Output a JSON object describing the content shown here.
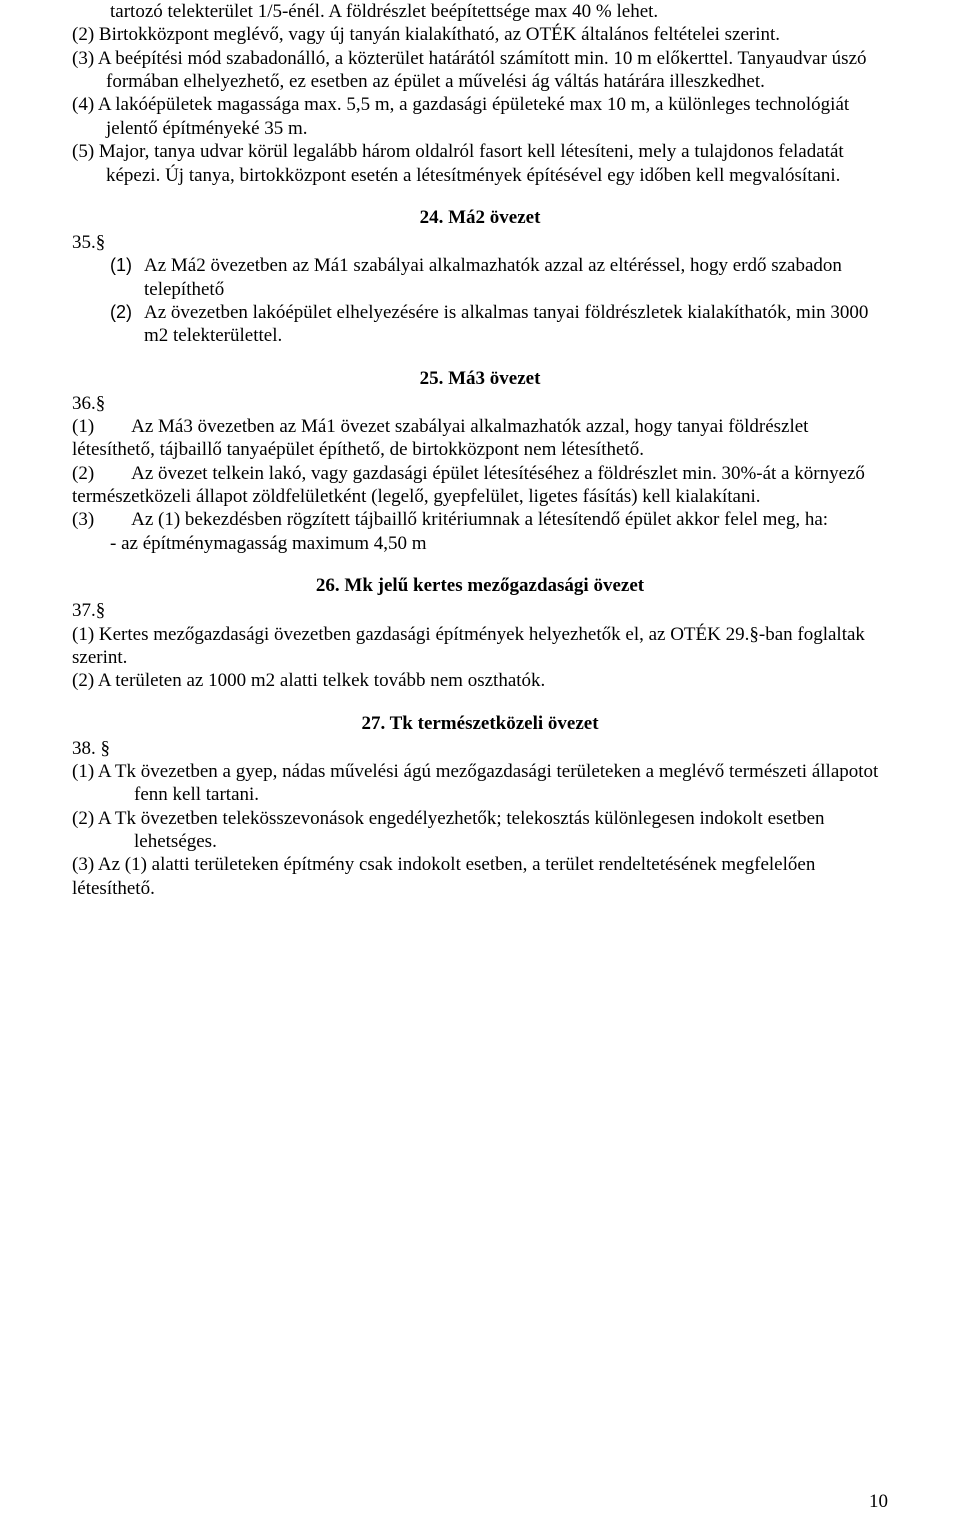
{
  "top": {
    "p1_cont": "tartozó telekterület 1/5-énél. A földrészlet beépítettsége max 40 % lehet.",
    "p2": "(2) Birtokközpont meglévő, vagy új tanyán kialakítható, az OTÉK általános feltételei szerint.",
    "p3": "(3) A beépítési mód szabadonálló, a közterület határától számított min. 10 m előkerttel. Tanyaudvar úszó formában elhelyezhető, ez esetben az épület a művelési ág váltás határára illeszkedhet.",
    "p4": "(4) A lakóépületek magassága max. 5,5 m, a gazdasági épületeké max 10 m, a különleges technológiát jelentő építményeké 35 m.",
    "p5": "(5) Major, tanya udvar körül legalább három oldalról fasort kell létesíteni, mely a tulajdonos feladatát képezi. Új tanya, birtokközpont esetén a létesítmények építésével egy időben kell megvalósítani."
  },
  "s24": {
    "title": "24. Má2 övezet",
    "num": "35.§",
    "i1_marker": "(1)",
    "i1": "Az Má2 övezetben az Má1 szabályai alkalmazhatók azzal az eltéréssel, hogy erdő szabadon telepíthető",
    "i2_marker": "(2)",
    "i2": "Az övezetben lakóépület elhelyezésére is alkalmas tanyai földrészletek kialakíthatók, min 3000 m2 telekterülettel."
  },
  "s25": {
    "title": "25. Má3 övezet",
    "num": "36.§",
    "p1": "(1)        Az Má3 övezetben az Má1 övezet szabályai alkalmazhatók azzal, hogy tanyai földrészlet létesíthető, tájbaillő tanyaépület építhető, de birtokközpont nem létesíthető.",
    "p2": "(2)        Az övezet telkein lakó, vagy gazdasági épület létesítéséhez a földrészlet min. 30%-át a környező természetközeli állapot zöldfelületként (legelő, gyepfelület, ligetes fásítás) kell kialakítani.",
    "p3": "(3)        Az (1) bekezdésben rögzített tájbaillő kritériumnak a létesítendő épület akkor felel meg, ha:",
    "dash": "-    az építménymagasság maximum 4,50 m"
  },
  "s26": {
    "title": "26. Mk jelű kertes mezőgazdasági övezet",
    "num": "37.§",
    "p1": "(1) Kertes mezőgazdasági övezetben gazdasági építmények helyezhetők el, az OTÉK 29.§-ban foglaltak szerint.",
    "p2": "(2) A területen az 1000 m2 alatti  telkek tovább nem oszthatók."
  },
  "s27": {
    "title": "27. Tk természetközeli övezet",
    "num": "38. §",
    "p1": "(1)  A Tk övezetben a gyep, nádas művelési ágú mezőgazdasági területeken a meglévő természeti állapotot fenn kell tartani.",
    "p2": "(2)  A Tk övezetben telekösszevonások engedélyezhetők; telekosztás különlegesen indokolt esetben lehetséges.",
    "p3": "(3) Az (1) alatti területeken építmény csak indokolt esetben, a terület rendeltetésének megfelelően létesíthető."
  },
  "page_number": "10"
}
